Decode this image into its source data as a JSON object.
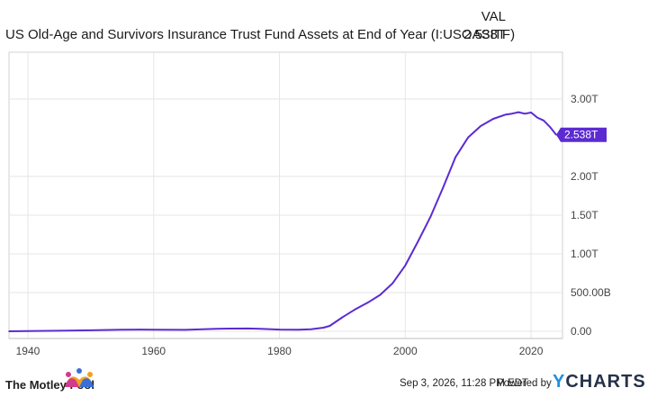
{
  "header": {
    "title": "US Old-Age and Survivors Insurance Trust Fund Assets at End of Year (I:USOASITF)",
    "column_label": "VAL",
    "value": "2.538T"
  },
  "footer": {
    "timestamp": "Sep 3, 2026, 11:28 PM EDT",
    "powered_by": "Powered by",
    "brand": "YCHARTS",
    "brand_y": "Y",
    "brand_rest": "CHARTS",
    "logo_text": "The Motley Fool"
  },
  "colors": {
    "line": "#5b2bd1",
    "grid": "#e6e6e6",
    "axis": "#8a8a8a"
  },
  "chart_data": {
    "type": "line",
    "title": "US Old-Age and Survivors Insurance Trust Fund Assets at End of Year (I:USOASITF)",
    "xlabel": "",
    "ylabel": "",
    "xlim": [
      1937,
      2025
    ],
    "ylim": [
      0,
      3.5
    ],
    "x_ticks": [
      1940,
      1960,
      1980,
      2000,
      2020
    ],
    "x_tick_labels": [
      "1940",
      "1960",
      "1980",
      "2000",
      "2020"
    ],
    "y_ticks": [
      0,
      0.5,
      1.0,
      1.5,
      2.0,
      3.0
    ],
    "y_tick_labels": [
      "0.00",
      "500.00B",
      "1.00T",
      "1.50T",
      "2.00T",
      "3.00T"
    ],
    "grid": true,
    "series": [
      {
        "name": "",
        "unit": "trillions USD",
        "x": [
          1937,
          1940,
          1945,
          1950,
          1955,
          1958,
          1960,
          1965,
          1970,
          1972,
          1975,
          1977,
          1980,
          1983,
          1985,
          1987,
          1988,
          1990,
          1992,
          1994,
          1996,
          1998,
          2000,
          2002,
          2004,
          2006,
          2008,
          2010,
          2012,
          2014,
          2016,
          2017,
          2018,
          2019,
          2020,
          2021,
          2022,
          2023,
          2024
        ],
        "y": [
          0.0,
          0.002,
          0.007,
          0.013,
          0.021,
          0.022,
          0.02,
          0.019,
          0.032,
          0.035,
          0.036,
          0.032,
          0.022,
          0.02,
          0.027,
          0.046,
          0.07,
          0.18,
          0.281,
          0.369,
          0.47,
          0.621,
          0.85,
          1.157,
          1.476,
          1.854,
          2.251,
          2.505,
          2.651,
          2.744,
          2.8,
          2.812,
          2.83,
          2.81,
          2.826,
          2.76,
          2.723,
          2.641,
          2.538
        ]
      }
    ],
    "last_value_label": "2.538T"
  }
}
